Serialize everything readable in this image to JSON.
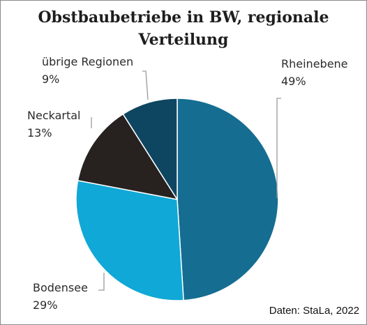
{
  "chart_data": {
    "type": "pie",
    "title": "Obstbaubetriebe in BW, regionale\nVerteilung",
    "categories": [
      "Rheinebene",
      "Bodensee",
      "Neckartal",
      "übrige Regionen"
    ],
    "values": [
      49,
      29,
      13,
      9
    ],
    "value_labels": [
      "49%",
      "29%",
      "13%",
      "9%"
    ],
    "colors": [
      "#156d91",
      "#10a8d6",
      "#272220",
      "#0e4661"
    ],
    "start_angle_deg": 0,
    "direction": "clockwise",
    "legend": "none",
    "source": "Daten: StaLa, 2022"
  }
}
